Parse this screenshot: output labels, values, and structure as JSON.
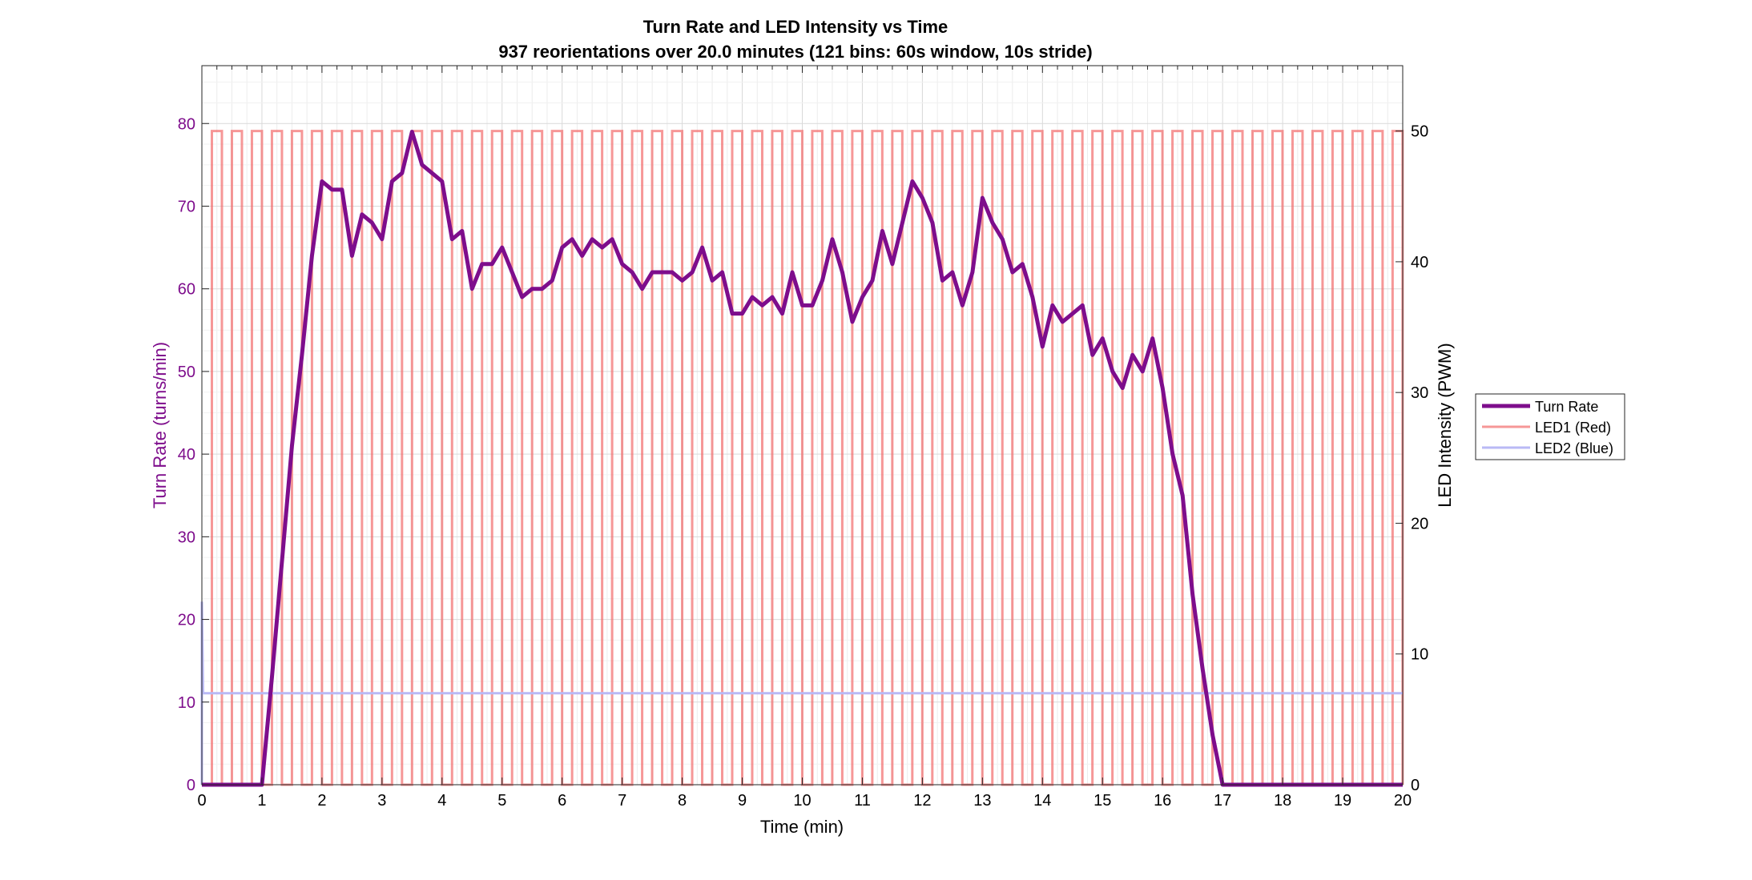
{
  "chart_data": {
    "type": "line",
    "title": "Turn Rate and LED Intensity vs Time",
    "subtitle": "937 reorientations over 20.0 minutes (121 bins: 60s window, 10s stride)",
    "xlabel": "Time (min)",
    "ylabel_left": "Turn Rate (turns/min)",
    "ylabel_right": "LED Intensity (PWM)",
    "xlim": [
      0,
      20
    ],
    "ylim_left": [
      0,
      87
    ],
    "ylim_right": [
      0,
      55
    ],
    "xticks": [
      "0",
      "1",
      "2",
      "3",
      "4",
      "5",
      "6",
      "7",
      "8",
      "9",
      "10",
      "11",
      "12",
      "13",
      "14",
      "15",
      "16",
      "17",
      "18",
      "19",
      "20"
    ],
    "yticks_left": [
      "0",
      "10",
      "20",
      "30",
      "40",
      "50",
      "60",
      "70",
      "80"
    ],
    "yticks_right": [
      "0",
      "10",
      "20",
      "30",
      "40",
      "50"
    ],
    "grid": true,
    "legend_position": "right",
    "colors": {
      "turn_rate": "#7E0D8C",
      "led1": "#F26B6B",
      "led2": "#B9B9F5"
    },
    "series": [
      {
        "name": "Turn Rate",
        "axis": "left",
        "x_step_min": 0.16667,
        "values": [
          0,
          0,
          0,
          0,
          0,
          0,
          0,
          13,
          27,
          41,
          52,
          64,
          73,
          72,
          72,
          64,
          69,
          68,
          66,
          73,
          74,
          79,
          75,
          74,
          73,
          66,
          67,
          60,
          63,
          63,
          65,
          62,
          59,
          60,
          60,
          61,
          65,
          66,
          64,
          66,
          65,
          66,
          63,
          62,
          60,
          62,
          62,
          62,
          61,
          62,
          65,
          61,
          62,
          57,
          57,
          59,
          58,
          59,
          57,
          62,
          58,
          58,
          61,
          66,
          62,
          56,
          59,
          61,
          67,
          63,
          68,
          73,
          71,
          68,
          61,
          62,
          58,
          62,
          71,
          68,
          66,
          62,
          63,
          59,
          53,
          58,
          56,
          57,
          58,
          52,
          54,
          50,
          48,
          52,
          50,
          54,
          48,
          40,
          35,
          23,
          14,
          6,
          0,
          0,
          0,
          0,
          0,
          0,
          0,
          0,
          0,
          0,
          0,
          0,
          0,
          0,
          0,
          0,
          0,
          0,
          0
        ]
      },
      {
        "name": "LED1 (Red)",
        "axis": "right",
        "pattern": "square",
        "high": 50,
        "low": 0,
        "period_min": 0.3333,
        "on_min": 0.1667,
        "start_min": 0.1667,
        "end_min": 20
      },
      {
        "name": "LED2 (Blue)",
        "axis": "right",
        "pattern": "constant",
        "value": 7,
        "initial_spike": 14
      }
    ]
  }
}
